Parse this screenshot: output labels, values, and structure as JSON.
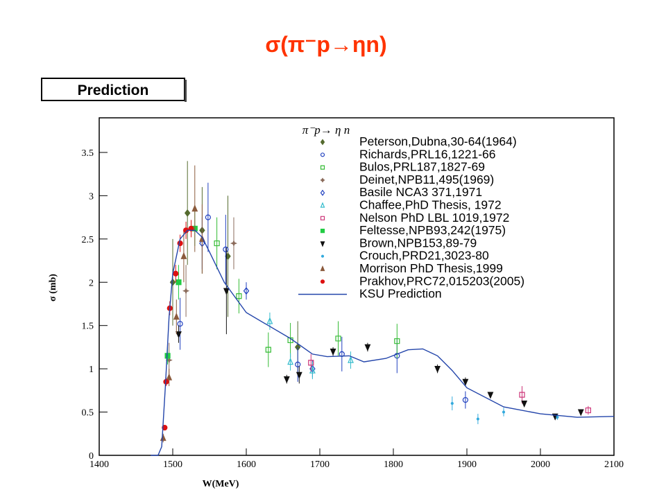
{
  "chart_data": {
    "type": "scatter",
    "title": "σ(π⁻p→ηn)",
    "badge": "Prediction",
    "legend_title": "π⁻p→ η n",
    "xlabel": "W(MeV)",
    "ylabel": "σ (mb)",
    "xlim": [
      1400,
      2100
    ],
    "xticks": [
      1400,
      1500,
      1600,
      1700,
      1800,
      1900,
      2000,
      2100
    ],
    "ylim": [
      0,
      3.9
    ],
    "yticks": [
      0,
      0.5,
      1,
      1.5,
      2,
      2.5,
      3,
      3.5
    ],
    "series": [
      {
        "name": "Peterson,Dubna,30-64(1964)",
        "color": "#556b2f",
        "marker": "diamond",
        "x": [
          1500,
          1520,
          1540,
          1575,
          1670
        ],
        "values": [
          2.0,
          2.8,
          2.6,
          2.3,
          1.25
        ],
        "errors": [
          0.5,
          0.6,
          0.5,
          0.7,
          0.3
        ]
      },
      {
        "name": "Richards,PRL16,1221-66",
        "color": "#1f3fbf",
        "marker": "circle-open",
        "x": [
          1510,
          1548,
          1572,
          1670,
          1730,
          1805,
          1898
        ],
        "values": [
          1.52,
          2.75,
          2.38,
          1.05,
          1.17,
          1.15,
          0.64
        ],
        "errors": [
          0.3,
          0.4,
          0.4,
          0.2,
          0.2,
          0.2,
          0.1
        ]
      },
      {
        "name": "Bulos,PRL187,1827-69",
        "color": "#33bb33",
        "marker": "square-open",
        "x": [
          1560,
          1590,
          1630,
          1660,
          1725,
          1805
        ],
        "values": [
          2.45,
          1.84,
          1.22,
          1.33,
          1.35,
          1.32
        ],
        "errors": [
          0.3,
          0.2,
          0.2,
          0.2,
          0.2,
          0.2
        ]
      },
      {
        "name": "Deinet,NPB11,495(1969)",
        "color": "#8b6b5b",
        "marker": "star",
        "x": [
          1495,
          1518,
          1583
        ],
        "values": [
          1.1,
          1.9,
          2.45
        ],
        "errors": [
          0.2,
          0.3,
          0.3
        ]
      },
      {
        "name": "Basile NCA3 371,1971",
        "color": "#1f3fbf",
        "marker": "diamond-open",
        "x": [
          1540,
          1600,
          1690
        ],
        "values": [
          2.45,
          1.9,
          1.0
        ],
        "errors": [
          0.3,
          0.1,
          0.1
        ]
      },
      {
        "name": "Chaffee,PhD Thesis, 1972",
        "color": "#33bbcc",
        "marker": "triangle-open",
        "x": [
          1632,
          1660,
          1690,
          1742
        ],
        "values": [
          1.55,
          1.08,
          0.98,
          1.1
        ],
        "errors": [
          0.1,
          0.1,
          0.1,
          0.1
        ]
      },
      {
        "name": "Nelson PhD LBL 1019,1972",
        "color": "#cc3377",
        "marker": "square-open",
        "x": [
          1688,
          1975,
          2065
        ],
        "values": [
          1.07,
          0.7,
          0.52
        ],
        "errors": [
          0.1,
          0.1,
          0.05
        ]
      },
      {
        "name": "Feltesse,NPB93,242(1975)",
        "color": "#22cc44",
        "marker": "square",
        "x": [
          1493,
          1508,
          1530
        ],
        "values": [
          1.15,
          2.0,
          2.62
        ],
        "errors": [
          0.1,
          0.2,
          0.2
        ]
      },
      {
        "name": "Brown,NPB153,89-79",
        "color": "#111111",
        "marker": "triangle-down",
        "x": [
          1508,
          1573,
          1655,
          1672,
          1718,
          1765,
          1860,
          1898,
          1932,
          1978,
          2020,
          2055
        ],
        "values": [
          1.4,
          1.9,
          0.88,
          0.93,
          1.2,
          1.25,
          1.0,
          0.85,
          0.7,
          0.6,
          0.45,
          0.5
        ],
        "errors": [
          0.1,
          0.5,
          0.05,
          0.1,
          0.05,
          0.05,
          0.05,
          0.05,
          0.03,
          0.03,
          0.03,
          0.03
        ]
      },
      {
        "name": "Crouch,PRD21,3023-80",
        "color": "#33aadd",
        "marker": "dot",
        "x": [
          1880,
          1915,
          1950,
          2023
        ],
        "values": [
          0.6,
          0.42,
          0.5,
          0.44
        ],
        "errors": [
          0.08,
          0.06,
          0.05,
          0.03
        ]
      },
      {
        "name": "Morrison PhD Thesis,1999",
        "color": "#8b5a3c",
        "marker": "triangle",
        "x": [
          1487,
          1495,
          1505,
          1515,
          1530,
          1540
        ],
        "values": [
          0.2,
          0.9,
          1.6,
          2.3,
          2.85,
          2.5
        ],
        "errors": [
          0.05,
          0.1,
          0.2,
          0.3,
          0.5,
          0.4
        ]
      },
      {
        "name": "Prakhov,PRC72,015203(2005)",
        "color": "#dd1111",
        "marker": "circle",
        "x": [
          1489,
          1491,
          1496,
          1504,
          1510,
          1518,
          1525
        ],
        "values": [
          0.32,
          0.85,
          1.7,
          2.1,
          2.45,
          2.6,
          2.62
        ],
        "errors": [
          0.03,
          0.05,
          0.08,
          0.1,
          0.1,
          0.1,
          0.1
        ]
      },
      {
        "name": "KSU Prediction",
        "color": "#2244aa",
        "marker": "line",
        "x": [
          1470,
          1480,
          1485,
          1490,
          1495,
          1500,
          1510,
          1520,
          1530,
          1540,
          1550,
          1570,
          1600,
          1630,
          1660,
          1690,
          1710,
          1740,
          1760,
          1790,
          1820,
          1840,
          1860,
          1880,
          1900,
          1950,
          2000,
          2050,
          2100
        ],
        "values": [
          0,
          0,
          0.1,
          0.8,
          1.6,
          2.1,
          2.5,
          2.6,
          2.6,
          2.52,
          2.35,
          2.0,
          1.65,
          1.5,
          1.35,
          1.17,
          1.14,
          1.15,
          1.08,
          1.12,
          1.22,
          1.23,
          1.15,
          0.98,
          0.78,
          0.56,
          0.48,
          0.44,
          0.45
        ]
      }
    ]
  }
}
